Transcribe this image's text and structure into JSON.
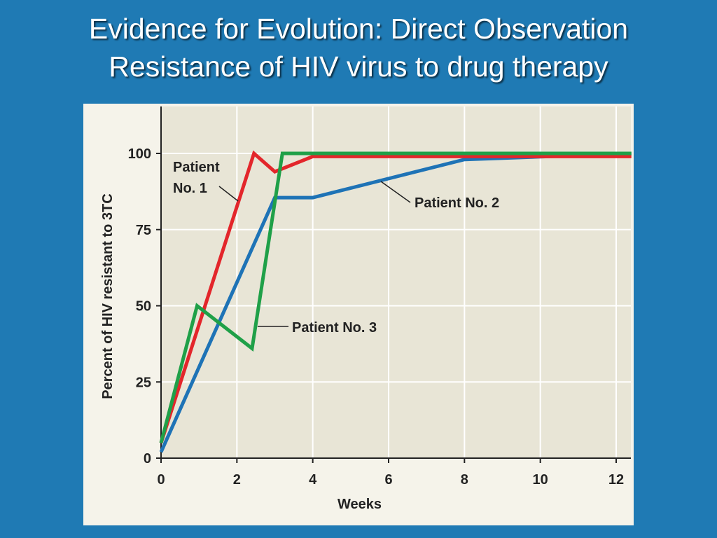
{
  "slide": {
    "title_line1": "Evidence for Evolution: Direct Observation",
    "title_line2": "Resistance of HIV virus to drug therapy"
  },
  "colors": {
    "background": "#1f7ab4",
    "plot_area": "#e8e5d6",
    "panel": "#f5f3ea",
    "patient1": "#e3262b",
    "patient2": "#1e73b6",
    "patient3": "#1fa048"
  },
  "chart_data": {
    "type": "line",
    "title": "",
    "xlabel": "Weeks",
    "ylabel": "Percent of HIV resistant to 3TC",
    "xlim": [
      0,
      12.4
    ],
    "ylim": [
      0,
      115
    ],
    "x_ticks": [
      0,
      2,
      4,
      6,
      8,
      10,
      12
    ],
    "y_ticks": [
      0,
      25,
      50,
      75,
      100
    ],
    "grid": true,
    "series": [
      {
        "name": "Patient No. 1",
        "color": "#e3262b",
        "x": [
          0,
          2.45,
          3,
          4,
          12.4
        ],
        "y": [
          5,
          100,
          94,
          99,
          99
        ]
      },
      {
        "name": "Patient No. 2",
        "color": "#1e73b6",
        "x": [
          0,
          3,
          4,
          8,
          12.4
        ],
        "y": [
          2,
          85.5,
          85.5,
          98,
          100
        ]
      },
      {
        "name": "Patient No. 3",
        "color": "#1fa048",
        "x": [
          0,
          0.95,
          2.4,
          3.2,
          12.4
        ],
        "y": [
          5,
          50,
          36,
          100,
          100
        ]
      }
    ],
    "annotations": [
      {
        "lines": [
          "Patient",
          "No. 1"
        ],
        "series": 0
      },
      {
        "lines": [
          "Patient No. 2"
        ],
        "series": 1
      },
      {
        "lines": [
          "Patient No. 3"
        ],
        "series": 2
      }
    ]
  }
}
